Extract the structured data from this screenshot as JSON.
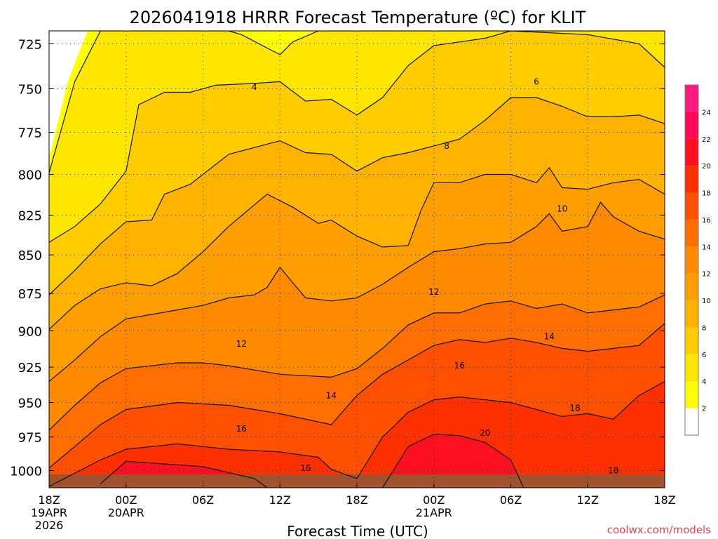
{
  "chart_data": {
    "type": "heatmap",
    "title": "2026041918 HRRR Forecast Temperature (ºC) for KLIT",
    "xlabel": "Forecast Time (UTC)",
    "ylabel": "",
    "credit": "coolwx.com/models",
    "y_axis": {
      "scale": "log",
      "inverted": true,
      "range": [
        718,
        1013
      ],
      "ticks": [
        "725",
        "750",
        "775",
        "800",
        "825",
        "850",
        "875",
        "900",
        "925",
        "950",
        "975",
        "1000"
      ]
    },
    "x_axis": {
      "range_hours": [
        0,
        48
      ],
      "ticks": [
        {
          "hour": 0,
          "lines": [
            "18Z",
            "19APR",
            "2026"
          ]
        },
        {
          "hour": 6,
          "lines": [
            "00Z",
            "20APR"
          ]
        },
        {
          "hour": 12,
          "lines": [
            "06Z"
          ]
        },
        {
          "hour": 18,
          "lines": [
            "12Z"
          ]
        },
        {
          "hour": 24,
          "lines": [
            "18Z"
          ]
        },
        {
          "hour": 30,
          "lines": [
            "00Z",
            "21APR"
          ]
        },
        {
          "hour": 36,
          "lines": [
            "06Z"
          ]
        },
        {
          "hour": 42,
          "lines": [
            "12Z"
          ]
        },
        {
          "hour": 48,
          "lines": [
            "18Z"
          ]
        }
      ]
    },
    "grid": true,
    "legend_position": "right",
    "colorbar": {
      "levels": [
        0,
        2,
        4,
        6,
        8,
        10,
        12,
        14,
        16,
        18,
        20,
        22,
        24,
        26
      ],
      "tick_labels": [
        "2",
        "4",
        "6",
        "8",
        "10",
        "12",
        "14",
        "16",
        "18",
        "20",
        "22",
        "24"
      ],
      "colors": [
        "#ffffff",
        "#ffff00",
        "#ffe600",
        "#ffcc00",
        "#ffb300",
        "#ff9e00",
        "#ff8a00",
        "#ff6e00",
        "#ff5000",
        "#ff3000",
        "#ff1020",
        "#ff0a55",
        "#ff1a80"
      ]
    },
    "ground_color": "#a0522d",
    "contour_levels": [
      4,
      6,
      8,
      10,
      12,
      14,
      16,
      18,
      20
    ],
    "contours": [
      {
        "level": 4,
        "points": [
          [
            0,
            799
          ],
          [
            2,
            746
          ],
          [
            4,
            718
          ],
          [
            14,
            718
          ],
          [
            15,
            720
          ],
          [
            18,
            731
          ],
          [
            19,
            724
          ],
          [
            21,
            718
          ],
          [
            48,
            718
          ]
        ]
      },
      {
        "level": 6,
        "points": [
          [
            0,
            842
          ],
          [
            2,
            832
          ],
          [
            4,
            818
          ],
          [
            6,
            798
          ],
          [
            7,
            759
          ],
          [
            9,
            752
          ],
          [
            11,
            752
          ],
          [
            13,
            748
          ],
          [
            16,
            747
          ],
          [
            18,
            746
          ],
          [
            20,
            757
          ],
          [
            22,
            756
          ],
          [
            24,
            765
          ],
          [
            26,
            755
          ],
          [
            28,
            737
          ],
          [
            30,
            726
          ],
          [
            34,
            722
          ],
          [
            36,
            718
          ],
          [
            42,
            720
          ],
          [
            46,
            725
          ],
          [
            48,
            738
          ]
        ]
      },
      {
        "level": 8,
        "points": [
          [
            0,
            876
          ],
          [
            2,
            860
          ],
          [
            4,
            843
          ],
          [
            6,
            829
          ],
          [
            8,
            828
          ],
          [
            9,
            812
          ],
          [
            11,
            806
          ],
          [
            14,
            788
          ],
          [
            18,
            780
          ],
          [
            20,
            787
          ],
          [
            22,
            788
          ],
          [
            24,
            798
          ],
          [
            26,
            790
          ],
          [
            28,
            787
          ],
          [
            30,
            783
          ],
          [
            32,
            779
          ],
          [
            34,
            768
          ],
          [
            36,
            755
          ],
          [
            38,
            755
          ],
          [
            40,
            760
          ],
          [
            42,
            766
          ],
          [
            44,
            766
          ],
          [
            46,
            765
          ],
          [
            48,
            770
          ]
        ]
      },
      {
        "level": 10,
        "points": [
          [
            0,
            899
          ],
          [
            2,
            883
          ],
          [
            4,
            872
          ],
          [
            6,
            868
          ],
          [
            8,
            870
          ],
          [
            10,
            862
          ],
          [
            12,
            848
          ],
          [
            14,
            832
          ],
          [
            17,
            812
          ],
          [
            19,
            820
          ],
          [
            21,
            830
          ],
          [
            22,
            828
          ],
          [
            24,
            838
          ],
          [
            26,
            845
          ],
          [
            28,
            844
          ],
          [
            29,
            822
          ],
          [
            30,
            805
          ],
          [
            32,
            805
          ],
          [
            34,
            800
          ],
          [
            36,
            800
          ],
          [
            38,
            805
          ],
          [
            39,
            796
          ],
          [
            40,
            808
          ],
          [
            42,
            809
          ],
          [
            44,
            805
          ],
          [
            46,
            803
          ],
          [
            48,
            812
          ]
        ]
      },
      {
        "level": 12,
        "points": [
          [
            0,
            935
          ],
          [
            2,
            920
          ],
          [
            4,
            904
          ],
          [
            6,
            892
          ],
          [
            8,
            889
          ],
          [
            10,
            886
          ],
          [
            12,
            883
          ],
          [
            14,
            878
          ],
          [
            16,
            876
          ],
          [
            17,
            871
          ],
          [
            18,
            858
          ],
          [
            19,
            868
          ],
          [
            20,
            878
          ],
          [
            22,
            880
          ],
          [
            24,
            878
          ],
          [
            26,
            869
          ],
          [
            28,
            858
          ],
          [
            30,
            848
          ],
          [
            32,
            846
          ],
          [
            34,
            843
          ],
          [
            36,
            842
          ],
          [
            38,
            832
          ],
          [
            39,
            824
          ],
          [
            40,
            835
          ],
          [
            42,
            832
          ],
          [
            43,
            817
          ],
          [
            44,
            826
          ],
          [
            46,
            835
          ],
          [
            48,
            840
          ]
        ]
      },
      {
        "level": 14,
        "points": [
          [
            0,
            970
          ],
          [
            2,
            952
          ],
          [
            4,
            936
          ],
          [
            6,
            926
          ],
          [
            10,
            922
          ],
          [
            12,
            922
          ],
          [
            14,
            924
          ],
          [
            16,
            927
          ],
          [
            18,
            930
          ],
          [
            22,
            932
          ],
          [
            24,
            926
          ],
          [
            26,
            912
          ],
          [
            28,
            896
          ],
          [
            30,
            888
          ],
          [
            32,
            888
          ],
          [
            34,
            882
          ],
          [
            36,
            880
          ],
          [
            38,
            885
          ],
          [
            40,
            882
          ],
          [
            42,
            888
          ],
          [
            44,
            886
          ],
          [
            46,
            884
          ],
          [
            48,
            876
          ]
        ]
      },
      {
        "level": 16,
        "points": [
          [
            0,
            998
          ],
          [
            2,
            982
          ],
          [
            4,
            966
          ],
          [
            6,
            955
          ],
          [
            10,
            950
          ],
          [
            14,
            952
          ],
          [
            18,
            958
          ],
          [
            22,
            966
          ],
          [
            24,
            945
          ],
          [
            26,
            930
          ],
          [
            28,
            920
          ],
          [
            30,
            910
          ],
          [
            32,
            906
          ],
          [
            34,
            908
          ],
          [
            36,
            905
          ],
          [
            38,
            908
          ],
          [
            40,
            912
          ],
          [
            42,
            914
          ],
          [
            44,
            912
          ],
          [
            46,
            910
          ],
          [
            48,
            895
          ]
        ]
      },
      {
        "level": 18,
        "points": [
          [
            0,
            1012
          ],
          [
            4,
            992
          ],
          [
            6,
            984
          ],
          [
            10,
            980
          ],
          [
            14,
            984
          ],
          [
            18,
            986
          ],
          [
            21,
            990
          ],
          [
            22,
            999
          ],
          [
            24,
            1006
          ],
          [
            26,
            975
          ],
          [
            28,
            957
          ],
          [
            30,
            948
          ],
          [
            32,
            946
          ],
          [
            34,
            948
          ],
          [
            36,
            950
          ],
          [
            38,
            955
          ],
          [
            40,
            960
          ],
          [
            42,
            958
          ],
          [
            44,
            962
          ],
          [
            46,
            945
          ],
          [
            48,
            935
          ]
        ]
      },
      {
        "level": 20,
        "points": [
          [
            4,
            1010
          ],
          [
            6,
            993
          ],
          [
            9,
            995
          ],
          [
            12,
            997
          ],
          [
            16,
            1006
          ],
          [
            17,
            1013
          ]
        ]
      },
      {
        "level": 20,
        "points": [
          [
            26,
            1013
          ],
          [
            28,
            982
          ],
          [
            30,
            973
          ],
          [
            32,
            974
          ],
          [
            34,
            979
          ],
          [
            36,
            992
          ],
          [
            37,
            1013
          ]
        ]
      }
    ],
    "contour_labels": [
      {
        "text": "4",
        "hour": 16,
        "p": 749
      },
      {
        "text": "6",
        "hour": 38,
        "p": 746
      },
      {
        "text": "8",
        "hour": 31,
        "p": 783
      },
      {
        "text": "10",
        "hour": 40,
        "p": 821
      },
      {
        "text": "12",
        "hour": 30,
        "p": 874
      },
      {
        "text": "12",
        "hour": 15,
        "p": 909
      },
      {
        "text": "14",
        "hour": 39,
        "p": 904
      },
      {
        "text": "16",
        "hour": 32,
        "p": 924
      },
      {
        "text": "14",
        "hour": 22,
        "p": 945
      },
      {
        "text": "18",
        "hour": 41,
        "p": 954
      },
      {
        "text": "16",
        "hour": 15,
        "p": 969
      },
      {
        "text": "20",
        "hour": 34,
        "p": 972
      },
      {
        "text": "16",
        "hour": 20,
        "p": 998
      },
      {
        "text": "18",
        "hour": 44,
        "p": 1000
      }
    ]
  }
}
